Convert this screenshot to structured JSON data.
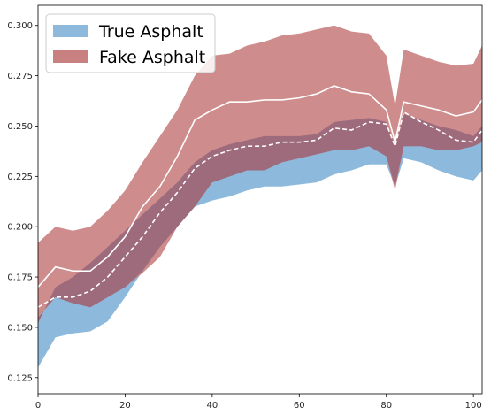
{
  "chart_data": {
    "type": "area",
    "xlim": [
      0,
      102
    ],
    "ylim": [
      0.117,
      0.31
    ],
    "x_ticks": [
      0,
      20,
      40,
      60,
      80,
      100
    ],
    "y_ticks": [
      0.125,
      0.15,
      0.175,
      0.2,
      0.225,
      0.25,
      0.275,
      0.3
    ],
    "x_tick_labels": [
      "0",
      "20",
      "40",
      "60",
      "80",
      "100"
    ],
    "y_tick_labels": [
      "0.125",
      "0.150",
      "0.175",
      "0.200",
      "0.225",
      "0.250",
      "0.275",
      "0.300"
    ],
    "grid": false,
    "legend": {
      "position": "top-left"
    },
    "x": [
      0,
      4,
      8,
      12,
      16,
      20,
      24,
      28,
      32,
      36,
      40,
      44,
      48,
      52,
      56,
      60,
      64,
      68,
      72,
      76,
      80,
      82,
      84,
      88,
      92,
      96,
      100,
      102
    ],
    "series": [
      {
        "name": "True Asphalt",
        "color": "#8dbadc",
        "lower": [
          0.13,
          0.145,
          0.147,
          0.148,
          0.153,
          0.165,
          0.178,
          0.19,
          0.2,
          0.21,
          0.213,
          0.215,
          0.218,
          0.22,
          0.22,
          0.221,
          0.222,
          0.226,
          0.228,
          0.231,
          0.231,
          0.22,
          0.234,
          0.232,
          0.228,
          0.225,
          0.223,
          0.228
        ],
        "upper": [
          0.152,
          0.17,
          0.175,
          0.182,
          0.19,
          0.198,
          0.206,
          0.214,
          0.222,
          0.232,
          0.238,
          0.241,
          0.243,
          0.245,
          0.245,
          0.245,
          0.246,
          0.252,
          0.253,
          0.254,
          0.252,
          0.24,
          0.256,
          0.253,
          0.25,
          0.248,
          0.245,
          0.25
        ],
        "mean": [
          0.16,
          0.165,
          0.165,
          0.168,
          0.175,
          0.185,
          0.195,
          0.207,
          0.217,
          0.229,
          0.235,
          0.238,
          0.24,
          0.24,
          0.242,
          0.242,
          0.243,
          0.249,
          0.248,
          0.252,
          0.251,
          0.24,
          0.257,
          0.252,
          0.248,
          0.243,
          0.242,
          0.248
        ]
      },
      {
        "name": "Fake Asphalt",
        "color": "#c98080",
        "lower": [
          0.155,
          0.165,
          0.162,
          0.16,
          0.165,
          0.17,
          0.177,
          0.185,
          0.2,
          0.21,
          0.222,
          0.225,
          0.228,
          0.228,
          0.232,
          0.234,
          0.236,
          0.238,
          0.238,
          0.24,
          0.235,
          0.218,
          0.24,
          0.24,
          0.238,
          0.238,
          0.24,
          0.242
        ],
        "upper": [
          0.192,
          0.2,
          0.198,
          0.2,
          0.208,
          0.218,
          0.232,
          0.245,
          0.258,
          0.275,
          0.285,
          0.286,
          0.29,
          0.292,
          0.295,
          0.296,
          0.298,
          0.3,
          0.297,
          0.296,
          0.285,
          0.26,
          0.288,
          0.285,
          0.282,
          0.28,
          0.281,
          0.29
        ],
        "mean": [
          0.17,
          0.18,
          0.178,
          0.178,
          0.185,
          0.195,
          0.21,
          0.22,
          0.235,
          0.253,
          0.258,
          0.262,
          0.262,
          0.263,
          0.263,
          0.264,
          0.266,
          0.27,
          0.267,
          0.266,
          0.258,
          0.242,
          0.262,
          0.26,
          0.258,
          0.255,
          0.257,
          0.263
        ]
      }
    ],
    "overlap_color": "#9e6b7d",
    "mean_line_color": "#ffffff"
  }
}
